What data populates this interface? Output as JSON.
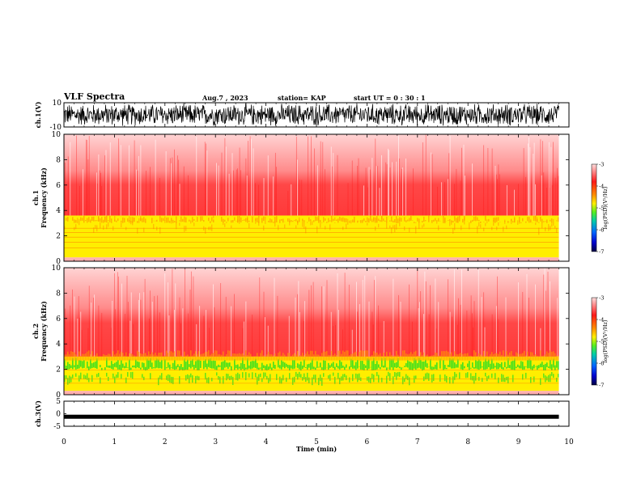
{
  "header": {
    "title": "VLF Spectra",
    "date": "Aug.7 , 2023",
    "station": "station= KAP",
    "start_ut": "start UT =  0 : 30 : 1"
  },
  "chart_data": [
    {
      "type": "line",
      "panel": "ch1-waveform",
      "ylabel": "ch.1(V)",
      "ylim": [
        -10,
        10
      ],
      "yticks": [
        "10",
        "-10"
      ],
      "x_extent_min": 9.8,
      "description_color": "#000000"
    },
    {
      "type": "heatmap",
      "panel": "ch1-spectrogram",
      "ylabel": "ch.1\nFrequency (kHz)",
      "ylim": [
        0,
        10
      ],
      "yticks": [
        0,
        2,
        4,
        6,
        8,
        10
      ],
      "x_extent_min": 9.8,
      "bands_khz": {
        "yellow_top": 3.6,
        "red_top": 10
      },
      "colorbar": {
        "label": "log(PSD)(V²/Hz)",
        "range": [
          -7,
          -3
        ],
        "ticks": [
          "-3",
          "-4",
          "-5",
          "-6",
          "-7"
        ]
      }
    },
    {
      "type": "heatmap",
      "panel": "ch2-spectrogram",
      "ylabel": "ch.2\nFrequency (kHz)",
      "ylim": [
        0,
        10
      ],
      "yticks": [
        0,
        2,
        4,
        6,
        8,
        10
      ],
      "x_extent_min": 9.8,
      "bands_khz": {
        "green_top": 3.0,
        "red_top": 10
      },
      "colorbar": {
        "label": "log(PSD)(V²/Hz)",
        "range": [
          -7,
          -3
        ],
        "ticks": [
          "-3",
          "-4",
          "-5",
          "-6",
          "-7"
        ]
      }
    },
    {
      "type": "line",
      "panel": "ch3-waveform",
      "ylabel": "ch.3(V)",
      "ylim": [
        -5,
        5
      ],
      "yticks": [
        "5",
        "0",
        "-5"
      ],
      "level": -1.2,
      "x_extent_min": 9.8
    }
  ],
  "xaxis": {
    "label": "Time (min)",
    "range": [
      0,
      10
    ],
    "ticks": [
      "0",
      "1",
      "2",
      "3",
      "4",
      "5",
      "6",
      "7",
      "8",
      "9",
      "10"
    ]
  },
  "colors": {
    "red": "#ff2a2a",
    "pink": "#ffd8d8",
    "yellow": "#ffee00",
    "green": "#22dd22",
    "orange": "#ff9a00"
  }
}
